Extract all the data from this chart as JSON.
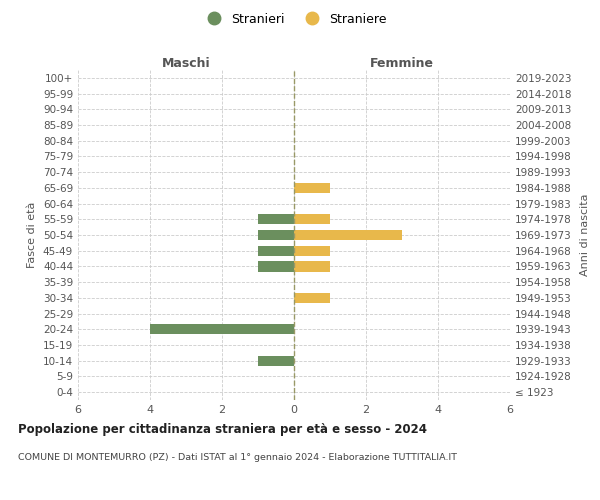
{
  "age_groups": [
    "100+",
    "95-99",
    "90-94",
    "85-89",
    "80-84",
    "75-79",
    "70-74",
    "65-69",
    "60-64",
    "55-59",
    "50-54",
    "45-49",
    "40-44",
    "35-39",
    "30-34",
    "25-29",
    "20-24",
    "15-19",
    "10-14",
    "5-9",
    "0-4"
  ],
  "birth_years": [
    "≤ 1923",
    "1924-1928",
    "1929-1933",
    "1934-1938",
    "1939-1943",
    "1944-1948",
    "1949-1953",
    "1954-1958",
    "1959-1963",
    "1964-1968",
    "1969-1973",
    "1974-1978",
    "1979-1983",
    "1984-1988",
    "1989-1993",
    "1994-1998",
    "1999-2003",
    "2004-2008",
    "2009-2013",
    "2014-2018",
    "2019-2023"
  ],
  "males": [
    0,
    0,
    0,
    0,
    0,
    0,
    0,
    0,
    0,
    1,
    1,
    1,
    1,
    0,
    0,
    0,
    4,
    0,
    1,
    0,
    0
  ],
  "females": [
    0,
    0,
    0,
    0,
    0,
    0,
    0,
    1,
    0,
    1,
    3,
    1,
    1,
    0,
    1,
    0,
    0,
    0,
    0,
    0,
    0
  ],
  "male_color": "#6B8F5E",
  "female_color": "#E8B84B",
  "title_main": "Popolazione per cittadinanza straniera per età e sesso - 2024",
  "title_sub": "COMUNE DI MONTEMURRO (PZ) - Dati ISTAT al 1° gennaio 2024 - Elaborazione TUTTITALIA.IT",
  "xlabel_left": "Maschi",
  "xlabel_right": "Femmine",
  "ylabel_left": "Fasce di età",
  "ylabel_right": "Anni di nascita",
  "legend_male": "Stranieri",
  "legend_female": "Straniere",
  "xlim": 6,
  "background_color": "#ffffff",
  "grid_color": "#cccccc",
  "text_color": "#555555"
}
